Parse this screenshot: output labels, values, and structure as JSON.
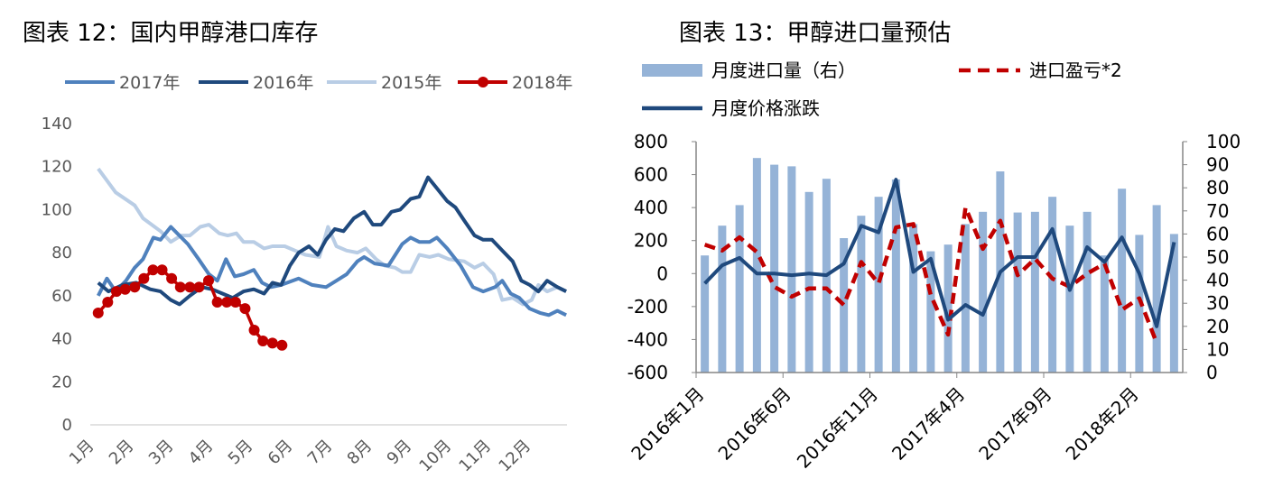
{
  "chart_data": [
    {
      "type": "line",
      "title": "图表 12：国内甲醇港口库存",
      "xlabel": "",
      "ylabel": "",
      "ylim": [
        0,
        140
      ],
      "yticks": [
        "0",
        "20",
        "40",
        "60",
        "80",
        "100",
        "120",
        "140"
      ],
      "xlim": [
        1,
        12.85
      ],
      "xticks": [
        "1月",
        "2月",
        "3月",
        "4月",
        "5月",
        "6月",
        "7月",
        "8月",
        "9月",
        "10月",
        "11月",
        "12月"
      ],
      "grid": false,
      "legend_position": "top",
      "series": [
        {
          "name": "2017年",
          "color": "#4f81bd",
          "marker": false,
          "points": [
            [
              1.04,
              60
            ],
            [
              1.26,
              68
            ],
            [
              1.48,
              62
            ],
            [
              1.74,
              67
            ],
            [
              1.96,
              73
            ],
            [
              2.17,
              77
            ],
            [
              2.43,
              87
            ],
            [
              2.61,
              86
            ],
            [
              2.87,
              92
            ],
            [
              3.3,
              84
            ],
            [
              3.57,
              77
            ],
            [
              3.83,
              70
            ],
            [
              4.04,
              67
            ],
            [
              4.26,
              77
            ],
            [
              4.48,
              69
            ],
            [
              4.7,
              70
            ],
            [
              4.96,
              72
            ],
            [
              5.17,
              66
            ],
            [
              5.39,
              64
            ],
            [
              5.65,
              65
            ],
            [
              6.09,
              68
            ],
            [
              6.43,
              65
            ],
            [
              6.78,
              64
            ],
            [
              7.04,
              67
            ],
            [
              7.3,
              70
            ],
            [
              7.57,
              76
            ],
            [
              7.74,
              78
            ],
            [
              8,
              75
            ],
            [
              8.35,
              74
            ],
            [
              8.7,
              84
            ],
            [
              8.91,
              87
            ],
            [
              9.13,
              85
            ],
            [
              9.39,
              85
            ],
            [
              9.57,
              87
            ],
            [
              9.83,
              82
            ],
            [
              10.17,
              74
            ],
            [
              10.48,
              64
            ],
            [
              10.74,
              62
            ],
            [
              11.04,
              64
            ],
            [
              11.22,
              67
            ],
            [
              11.43,
              61
            ],
            [
              11.65,
              59
            ],
            [
              11.91,
              54
            ],
            [
              12.17,
              52
            ],
            [
              12.39,
              51
            ],
            [
              12.61,
              53
            ],
            [
              12.83,
              51
            ]
          ]
        },
        {
          "name": "2016年",
          "color": "#1f497d",
          "marker": false,
          "points": [
            [
              1.04,
              66
            ],
            [
              1.3,
              62
            ],
            [
              1.65,
              65
            ],
            [
              2,
              66
            ],
            [
              2.35,
              63
            ],
            [
              2.61,
              62
            ],
            [
              2.87,
              58
            ],
            [
              3.09,
              56
            ],
            [
              3.35,
              60
            ],
            [
              3.65,
              64
            ],
            [
              3.91,
              63
            ],
            [
              4.17,
              61
            ],
            [
              4.43,
              59
            ],
            [
              4.7,
              62
            ],
            [
              4.96,
              63
            ],
            [
              5.22,
              61
            ],
            [
              5.43,
              66
            ],
            [
              5.65,
              65
            ],
            [
              5.87,
              74
            ],
            [
              6.09,
              80
            ],
            [
              6.35,
              83
            ],
            [
              6.57,
              79
            ],
            [
              6.78,
              86
            ],
            [
              7,
              91
            ],
            [
              7.22,
              90
            ],
            [
              7.48,
              96
            ],
            [
              7.74,
              99
            ],
            [
              7.96,
              93
            ],
            [
              8.17,
              93
            ],
            [
              8.43,
              99
            ],
            [
              8.65,
              100
            ],
            [
              8.91,
              105
            ],
            [
              9.13,
              106
            ],
            [
              9.35,
              115
            ],
            [
              9.57,
              110
            ],
            [
              9.83,
              104
            ],
            [
              10.04,
              101
            ],
            [
              10.26,
              95
            ],
            [
              10.52,
              88
            ],
            [
              10.74,
              86
            ],
            [
              10.96,
              86
            ],
            [
              11.22,
              81
            ],
            [
              11.48,
              76
            ],
            [
              11.7,
              67
            ],
            [
              11.91,
              65
            ],
            [
              12.13,
              62
            ],
            [
              12.35,
              67
            ],
            [
              12.61,
              64
            ],
            [
              12.83,
              62
            ]
          ]
        },
        {
          "name": "2015年",
          "color": "#b9cde5",
          "marker": false,
          "points": [
            [
              1.04,
              119
            ],
            [
              1.48,
              108
            ],
            [
              1.96,
              102
            ],
            [
              2.17,
              96
            ],
            [
              2.61,
              90
            ],
            [
              2.87,
              85
            ],
            [
              3.13,
              88
            ],
            [
              3.35,
              88
            ],
            [
              3.61,
              92
            ],
            [
              3.83,
              93
            ],
            [
              4.09,
              89
            ],
            [
              4.3,
              88
            ],
            [
              4.52,
              89
            ],
            [
              4.7,
              85
            ],
            [
              4.96,
              85
            ],
            [
              5.22,
              82
            ],
            [
              5.43,
              83
            ],
            [
              5.74,
              83
            ],
            [
              6,
              81
            ],
            [
              6.26,
              79
            ],
            [
              6.61,
              78
            ],
            [
              6.83,
              92
            ],
            [
              7.04,
              83
            ],
            [
              7.3,
              81
            ],
            [
              7.57,
              80
            ],
            [
              7.78,
              82
            ],
            [
              8.04,
              77
            ],
            [
              8.26,
              74
            ],
            [
              8.52,
              73
            ],
            [
              8.7,
              71
            ],
            [
              8.91,
              71
            ],
            [
              9.13,
              79
            ],
            [
              9.39,
              78
            ],
            [
              9.61,
              79
            ],
            [
              9.87,
              77
            ],
            [
              10.26,
              76
            ],
            [
              10.52,
              73
            ],
            [
              10.74,
              75
            ],
            [
              11,
              70
            ],
            [
              11.22,
              58
            ],
            [
              11.48,
              59
            ],
            [
              11.74,
              56
            ],
            [
              11.96,
              58
            ],
            [
              12.13,
              65
            ],
            [
              12.35,
              62
            ],
            [
              12.61,
              64
            ],
            [
              12.83,
              62
            ]
          ]
        },
        {
          "name": "2018年",
          "color": "#c00000",
          "marker": true,
          "points": [
            [
              1.04,
              52
            ],
            [
              1.28,
              57
            ],
            [
              1.5,
              62
            ],
            [
              1.72,
              63
            ],
            [
              1.96,
              64
            ],
            [
              2.19,
              68
            ],
            [
              2.42,
              72
            ],
            [
              2.65,
              72
            ],
            [
              2.89,
              68
            ],
            [
              3.11,
              64
            ],
            [
              3.35,
              64
            ],
            [
              3.58,
              64
            ],
            [
              3.82,
              67
            ],
            [
              4.04,
              57
            ],
            [
              4.28,
              57
            ],
            [
              4.5,
              57
            ],
            [
              4.74,
              54
            ],
            [
              4.97,
              44
            ],
            [
              5.19,
              39
            ],
            [
              5.43,
              38
            ],
            [
              5.67,
              37
            ]
          ]
        }
      ]
    },
    {
      "type": "bar+line",
      "title": "图表 13：甲醇进口量预估",
      "categories": [
        "2016年1月",
        "2016年2月",
        "2016年3月",
        "2016年4月",
        "2016年5月",
        "2016年6月",
        "2016年7月",
        "2016年8月",
        "2016年9月",
        "2016年10月",
        "2016年11月",
        "2016年12月",
        "2017年1月",
        "2017年2月",
        "2017年3月",
        "2017年4月",
        "2017年5月",
        "2017年6月",
        "2017年7月",
        "2017年8月",
        "2017年9月",
        "2017年10月",
        "2017年11月",
        "2017年12月",
        "2018年1月",
        "2018年2月",
        "2018年3月",
        "2018年4月"
      ],
      "xtick_labels": [
        "2016年1月",
        "2016年6月",
        "2016年11月",
        "2017年4月",
        "2017年9月",
        "2018年2月"
      ],
      "y_left": {
        "lim": [
          -600,
          800
        ],
        "ticks": [
          "800",
          "600",
          "400",
          "200",
          "0",
          "-200",
          "-400",
          "-600"
        ]
      },
      "y_right": {
        "lim": [
          0,
          100
        ],
        "ticks": [
          "100",
          "90",
          "80",
          "70",
          "60",
          "50",
          "40",
          "30",
          "20",
          "10",
          "0"
        ]
      },
      "legend_position": "top",
      "series": [
        {
          "name": "月度进口量（右）",
          "kind": "bar",
          "axis": "right",
          "color": "#95b3d7",
          "values": [
            50.7,
            63.6,
            72.5,
            92.9,
            90,
            89.3,
            78.2,
            83.9,
            58.2,
            67.9,
            76.1,
            83.6,
            64.3,
            52.5,
            55.4,
            64.3,
            69.6,
            87.1,
            69.3,
            69.6,
            76.1,
            63.6,
            69.6,
            50.7,
            79.6,
            59.6,
            72.5,
            60
          ]
        },
        {
          "name": "进口盈亏*2",
          "kind": "dashed-line",
          "axis": "left",
          "color": "#c00000",
          "values": [
            175,
            140,
            220,
            130,
            -80,
            -140,
            -90,
            -90,
            -190,
            70,
            -60,
            280,
            300,
            -130,
            -370,
            400,
            150,
            320,
            -10,
            90,
            -30,
            -80,
            0,
            60,
            -220,
            -150,
            -420,
            null
          ]
        },
        {
          "name": "月度价格涨跌",
          "kind": "line",
          "axis": "left",
          "color": "#1f497d",
          "values": [
            -60,
            50,
            95,
            0,
            0,
            -10,
            0,
            -10,
            60,
            290,
            250,
            570,
            10,
            90,
            -280,
            -190,
            -250,
            10,
            100,
            100,
            270,
            -100,
            160,
            70,
            220,
            0,
            -320,
            190
          ]
        }
      ]
    }
  ]
}
